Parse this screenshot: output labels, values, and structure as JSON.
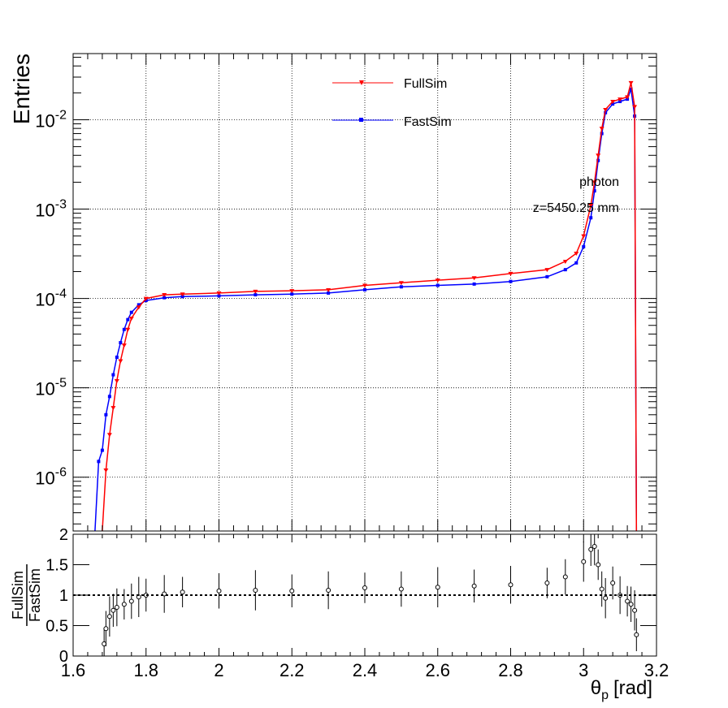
{
  "chart_data": [
    {
      "type": "line",
      "panel": "main",
      "ylabel": "Entries",
      "y_scale": "log",
      "xlim": [
        1.6,
        3.2
      ],
      "ylim": [
        2.5e-07,
        0.055
      ],
      "grid": true,
      "legend_position": "top-center",
      "x_ticks": [
        1.6,
        1.8,
        2.0,
        2.2,
        2.4,
        2.6,
        2.8,
        3.0,
        3.2
      ],
      "y_ticks": [
        {
          "exp": "-6",
          "value": 1e-06
        },
        {
          "exp": "-5",
          "value": 1e-05
        },
        {
          "exp": "-4",
          "value": 0.0001
        },
        {
          "exp": "-3",
          "value": 0.001
        },
        {
          "exp": "-2",
          "value": 0.01
        }
      ],
      "y_tick_base": "10",
      "annotations": [
        "photon",
        "z=5450.25 mm"
      ],
      "series": [
        {
          "name": "FullSim",
          "color": "#ff0000",
          "marker": "triangle-down",
          "x": [
            1.68,
            1.69,
            1.7,
            1.71,
            1.72,
            1.73,
            1.74,
            1.75,
            1.76,
            1.78,
            1.8,
            1.85,
            1.9,
            2.0,
            2.1,
            2.2,
            2.3,
            2.4,
            2.5,
            2.6,
            2.7,
            2.8,
            2.9,
            2.95,
            2.98,
            3.0,
            3.02,
            3.03,
            3.04,
            3.05,
            3.06,
            3.08,
            3.1,
            3.12,
            3.13,
            3.14,
            3.145
          ],
          "values": [
            2.5e-07,
            1.2e-06,
            3e-06,
            6e-06,
            1.2e-05,
            2e-05,
            3e-05,
            4.5e-05,
            6e-05,
            8e-05,
            0.0001,
            0.00011,
            0.000112,
            0.000115,
            0.00012,
            0.000122,
            0.000125,
            0.00014,
            0.00015,
            0.00016,
            0.00017,
            0.00019,
            0.00021,
            0.00026,
            0.00032,
            0.0005,
            0.0011,
            0.002,
            0.004,
            0.008,
            0.013,
            0.016,
            0.017,
            0.018,
            0.026,
            0.014,
            2.5e-07
          ]
        },
        {
          "name": "FastSim",
          "color": "#0000ff",
          "marker": "square",
          "x": [
            1.66,
            1.67,
            1.68,
            1.69,
            1.7,
            1.71,
            1.72,
            1.73,
            1.74,
            1.75,
            1.76,
            1.78,
            1.8,
            1.85,
            1.9,
            2.0,
            2.1,
            2.2,
            2.3,
            2.4,
            2.5,
            2.6,
            2.7,
            2.8,
            2.9,
            2.95,
            2.98,
            3.0,
            3.02,
            3.03,
            3.04,
            3.05,
            3.06,
            3.08,
            3.1,
            3.12,
            3.13,
            3.14,
            3.145
          ],
          "values": [
            2.5e-07,
            1.5e-06,
            2e-06,
            5e-06,
            8e-06,
            1.4e-05,
            2.2e-05,
            3.2e-05,
            4.5e-05,
            5.8e-05,
            7e-05,
            8.5e-05,
            9.5e-05,
            0.000102,
            0.000105,
            0.000107,
            0.00011,
            0.000112,
            0.000115,
            0.000125,
            0.000135,
            0.00014,
            0.000145,
            0.000155,
            0.000175,
            0.00021,
            0.00025,
            0.00038,
            0.0008,
            0.0016,
            0.0035,
            0.007,
            0.012,
            0.015,
            0.016,
            0.017,
            0.022,
            0.011,
            2.5e-07
          ]
        }
      ]
    },
    {
      "type": "scatter",
      "panel": "ratio",
      "ylabel_numerator": "FullSim",
      "ylabel_denominator": "FastSim",
      "xlabel_symbol": "θ",
      "xlabel_subscript": "p",
      "xlabel_unit": "[rad]",
      "xlim": [
        1.6,
        3.2
      ],
      "ylim": [
        0,
        2
      ],
      "reference_line": 1,
      "x_ticks": [
        "1.6",
        "1.8",
        "2",
        "2.2",
        "2.4",
        "2.6",
        "2.8",
        "3",
        "3.2"
      ],
      "y_ticks": [
        "0",
        "0.5",
        "1",
        "1.5",
        "2"
      ],
      "series": [
        {
          "name": "FullSim/FastSim",
          "color": "#000000",
          "x": [
            1.685,
            1.69,
            1.7,
            1.71,
            1.72,
            1.74,
            1.76,
            1.78,
            1.8,
            1.85,
            1.9,
            2.0,
            2.1,
            2.2,
            2.3,
            2.4,
            2.5,
            2.6,
            2.7,
            2.8,
            2.9,
            2.95,
            3.0,
            3.02,
            3.03,
            3.04,
            3.05,
            3.06,
            3.08,
            3.1,
            3.12,
            3.13,
            3.14,
            3.145
          ],
          "values": [
            0.2,
            0.45,
            0.65,
            0.75,
            0.8,
            0.85,
            0.9,
            0.97,
            1.0,
            1.02,
            1.05,
            1.07,
            1.08,
            1.07,
            1.08,
            1.12,
            1.1,
            1.13,
            1.15,
            1.17,
            1.2,
            1.3,
            1.55,
            1.75,
            1.8,
            1.5,
            1.1,
            0.95,
            1.2,
            1.0,
            0.9,
            0.85,
            0.75,
            0.35
          ]
        }
      ]
    }
  ]
}
